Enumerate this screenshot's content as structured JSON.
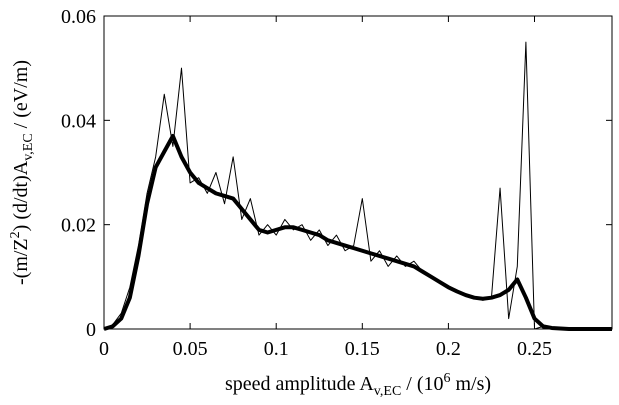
{
  "chart_data": {
    "type": "line",
    "x_label": {
      "parts": [
        {
          "text": "speed amplitude A"
        },
        {
          "text": "v,EC",
          "shift": "sub"
        },
        {
          "text": " / (10"
        },
        {
          "text": "6",
          "shift": "super"
        },
        {
          "text": " m/s)"
        }
      ]
    },
    "y_label": {
      "parts": [
        {
          "text": "-(m/Z"
        },
        {
          "text": "2",
          "shift": "super"
        },
        {
          "text": ") (d/dt)A"
        },
        {
          "text": "v,EC",
          "shift": "sub"
        },
        {
          "text": " / (eV/m)"
        }
      ]
    },
    "x": [
      0,
      0.005,
      0.01,
      0.015,
      0.02,
      0.025,
      0.03,
      0.035,
      0.04,
      0.045,
      0.05,
      0.055,
      0.06,
      0.065,
      0.07,
      0.075,
      0.08,
      0.085,
      0.09,
      0.095,
      0.1,
      0.105,
      0.11,
      0.115,
      0.12,
      0.125,
      0.13,
      0.135,
      0.14,
      0.145,
      0.15,
      0.155,
      0.16,
      0.165,
      0.17,
      0.175,
      0.18,
      0.185,
      0.19,
      0.195,
      0.2,
      0.205,
      0.21,
      0.215,
      0.22,
      0.225,
      0.23,
      0.235,
      0.24,
      0.245,
      0.25,
      0.255,
      0.26,
      0.265,
      0.27,
      0.275,
      0.28,
      0.285,
      0.29,
      0.295
    ],
    "series": [
      {
        "color": "#000000",
        "width": 1,
        "values": [
          0,
          0.0008,
          0.003,
          0.008,
          0.016,
          0.026,
          0.033,
          0.045,
          0.035,
          0.05,
          0.028,
          0.029,
          0.026,
          0.03,
          0.024,
          0.033,
          0.021,
          0.025,
          0.018,
          0.02,
          0.018,
          0.021,
          0.019,
          0.02,
          0.017,
          0.019,
          0.016,
          0.018,
          0.015,
          0.016,
          0.025,
          0.013,
          0.015,
          0.012,
          0.014,
          0.012,
          0.013,
          0.011,
          0.01,
          0.009,
          0.008,
          0.007,
          0.0065,
          0.006,
          0.0055,
          0.006,
          0.027,
          0.002,
          0.012,
          0.055,
          0,
          0.0005,
          0.0002,
          0,
          0,
          0,
          0,
          0,
          0,
          0
        ]
      },
      {
        "color": "#000000",
        "width": 4,
        "values": [
          0,
          0.0005,
          0.002,
          0.006,
          0.014,
          0.024,
          0.031,
          0.034,
          0.037,
          0.033,
          0.03,
          0.028,
          0.027,
          0.026,
          0.0255,
          0.025,
          0.023,
          0.021,
          0.019,
          0.0185,
          0.019,
          0.0195,
          0.0195,
          0.019,
          0.0185,
          0.018,
          0.017,
          0.0165,
          0.016,
          0.0155,
          0.015,
          0.0145,
          0.014,
          0.0135,
          0.013,
          0.0125,
          0.012,
          0.011,
          0.01,
          0.009,
          0.008,
          0.0072,
          0.0065,
          0.006,
          0.0058,
          0.006,
          0.0065,
          0.0075,
          0.0095,
          0.006,
          0.002,
          0.0005,
          0.0002,
          0.0001,
          0,
          0,
          0,
          0,
          0,
          0
        ]
      }
    ],
    "xlim": [
      0,
      0.295
    ],
    "xticks": [
      0,
      0.05,
      0.1,
      0.15,
      0.2,
      0.25
    ],
    "ylim": [
      0,
      0.06
    ],
    "yticks": [
      0,
      0.02,
      0.04,
      0.06
    ]
  }
}
